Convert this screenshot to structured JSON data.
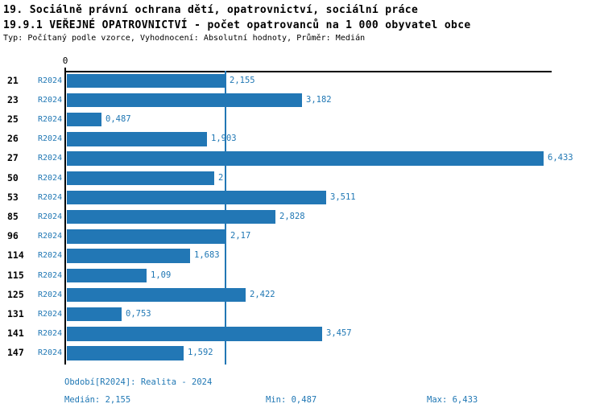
{
  "header": {
    "title_line1": "19. Sociálně právní ochrana dětí, opatrovnictví, sociální práce",
    "title_line2": "19.9.1 VEŘEJNÉ OPATROVNICTVÍ - počet opatrovanců na 1 000 obyvatel obce",
    "subtitle": "Typ: Počítaný podle vzorce, Vyhodnocení: Absolutní hodnoty, Průměr: Medián"
  },
  "chart_data": {
    "type": "bar",
    "orientation": "horizontal",
    "zero_tick_label": "0",
    "xlim": [
      0,
      6.54
    ],
    "grid": false,
    "legend": "none",
    "median_value": 2.155,
    "bar_color": "#2277b5",
    "text_color": "#1f77b4",
    "median_line_color": "#2277b5",
    "categories": [
      "21",
      "23",
      "25",
      "26",
      "27",
      "50",
      "53",
      "85",
      "96",
      "114",
      "115",
      "125",
      "131",
      "141",
      "147"
    ],
    "series_name": "R2024",
    "values": [
      2.155,
      3.182,
      0.487,
      1.903,
      6.433,
      2,
      3.511,
      2.828,
      2.17,
      1.683,
      1.09,
      2.422,
      0.753,
      3.457,
      1.592
    ],
    "rows": [
      {
        "category": "21",
        "series": "R2024",
        "value": 2.155,
        "value_label": "2,155"
      },
      {
        "category": "23",
        "series": "R2024",
        "value": 3.182,
        "value_label": "3,182"
      },
      {
        "category": "25",
        "series": "R2024",
        "value": 0.487,
        "value_label": "0,487"
      },
      {
        "category": "26",
        "series": "R2024",
        "value": 1.903,
        "value_label": "1,903"
      },
      {
        "category": "27",
        "series": "R2024",
        "value": 6.433,
        "value_label": "6,433"
      },
      {
        "category": "50",
        "series": "R2024",
        "value": 2,
        "value_label": "2"
      },
      {
        "category": "53",
        "series": "R2024",
        "value": 3.511,
        "value_label": "3,511"
      },
      {
        "category": "85",
        "series": "R2024",
        "value": 2.828,
        "value_label": "2,828"
      },
      {
        "category": "96",
        "series": "R2024",
        "value": 2.17,
        "value_label": "2,17"
      },
      {
        "category": "114",
        "series": "R2024",
        "value": 1.683,
        "value_label": "1,683"
      },
      {
        "category": "115",
        "series": "R2024",
        "value": 1.09,
        "value_label": "1,09"
      },
      {
        "category": "125",
        "series": "R2024",
        "value": 2.422,
        "value_label": "2,422"
      },
      {
        "category": "131",
        "series": "R2024",
        "value": 0.753,
        "value_label": "0,753"
      },
      {
        "category": "141",
        "series": "R2024",
        "value": 3.457,
        "value_label": "3,457"
      },
      {
        "category": "147",
        "series": "R2024",
        "value": 1.592,
        "value_label": "1,592"
      }
    ]
  },
  "footer": {
    "period": "Období[R2024]: Realita - 2024",
    "median": "Medián: 2,155",
    "min": "Min: 0,487",
    "max": "Max: 6,433"
  }
}
